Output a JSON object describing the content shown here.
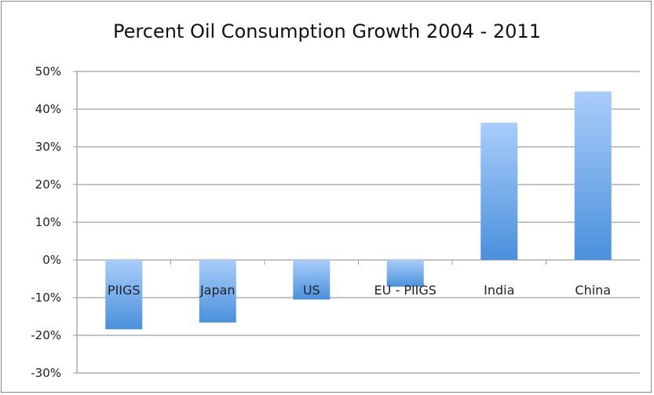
{
  "chart_data": {
    "type": "bar",
    "title": "Percent Oil Consumption Growth 2004 - 2011",
    "categories": [
      "PIIGS",
      "Japan",
      "US",
      "EU - PIIGS",
      "India",
      "China"
    ],
    "values": [
      -18.4,
      -16.6,
      -10.5,
      -7.1,
      36.4,
      44.7
    ],
    "xlabel": "",
    "ylabel": "",
    "ylim": [
      -30,
      50
    ],
    "yticks": [
      "50%",
      "40%",
      "30%",
      "20%",
      "10%",
      "0%",
      "-10%",
      "-20%",
      "-30%"
    ],
    "grid": true,
    "legend": "none",
    "colors": {
      "bar_top": "#a9cdfb",
      "bar_bottom": "#4a90dc",
      "grid": "#a0a0a0"
    }
  }
}
